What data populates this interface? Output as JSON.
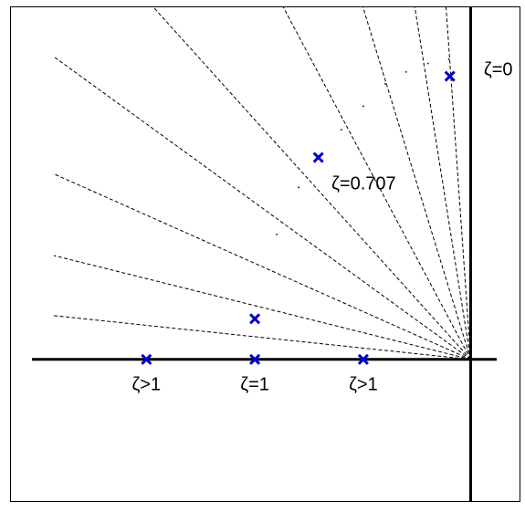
{
  "chart_data": {
    "type": "scatter",
    "title": "",
    "xlabel": "",
    "ylabel": "",
    "xlim": [
      -4.2,
      0.45
    ],
    "ylim": [
      -1.33,
      3.3
    ],
    "grid": false,
    "legend": "none",
    "colors": {
      "pole": "#0000cc",
      "axes": "#000000",
      "constant_damping_lines": "#000000"
    },
    "constant_damping_lines": {
      "style": "dashed",
      "angles_deg": [
        6,
        14,
        24,
        36,
        48,
        62,
        73,
        81,
        86
      ]
    },
    "locus_trace": {
      "style": "dotted",
      "points": [
        {
          "x": -1.77,
          "y": 1.17
        },
        {
          "x": -1.57,
          "y": 1.61
        },
        {
          "x": -1.18,
          "y": 2.15
        },
        {
          "x": -0.98,
          "y": 2.37
        },
        {
          "x": -0.78,
          "y": 2.58
        },
        {
          "x": -0.59,
          "y": 2.69
        },
        {
          "x": -0.39,
          "y": 2.77
        },
        {
          "x": -0.2,
          "y": 2.81
        }
      ]
    },
    "poles": {
      "marker": "x",
      "points": [
        {
          "x": -2.96,
          "y": 0
        },
        {
          "x": -1.97,
          "y": 0
        },
        {
          "x": -0.98,
          "y": 0
        },
        {
          "x": -1.97,
          "y": 0.38
        },
        {
          "x": -1.39,
          "y": 1.89
        },
        {
          "x": -0.19,
          "y": 2.65
        }
      ]
    },
    "annotations": [
      {
        "text": "ζ>1",
        "x": -2.96,
        "y": -0.23
      },
      {
        "text": "ζ=1",
        "x": -1.97,
        "y": -0.23
      },
      {
        "text": "ζ>1",
        "x": -0.98,
        "y": -0.23
      },
      {
        "text": "ζ=0.707",
        "x": -1.27,
        "y": 1.65
      },
      {
        "text": "ζ=0",
        "x": 0.12,
        "y": 2.72
      }
    ]
  }
}
